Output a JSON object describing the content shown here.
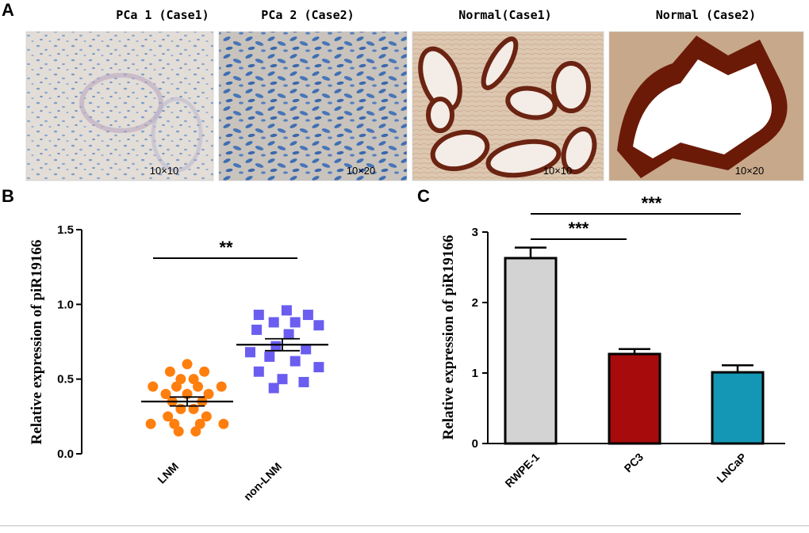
{
  "panel_a": {
    "letter": "A",
    "images": [
      {
        "title": "PCa 1 (Case1)",
        "magnification": "10×10",
        "kind": "pca-low"
      },
      {
        "title": "PCa 2 (Case2)",
        "magnification": "10×20",
        "kind": "pca-high"
      },
      {
        "title": "Normal(Case1)",
        "magnification": "10×10",
        "kind": "normal-low"
      },
      {
        "title": "Normal (Case2)",
        "magnification": "10×20",
        "kind": "normal-high"
      }
    ]
  },
  "chart_data": [
    {
      "type": "scatter",
      "panel": "B",
      "ylabel": "Relative expression of piR19166",
      "ylim": [
        0,
        1.5
      ],
      "yticks": [
        "0.0",
        "0.5",
        "1.0",
        "1.5"
      ],
      "categories": [
        "LNM",
        "non-LNM"
      ],
      "significance": "**",
      "series": [
        {
          "name": "LNM",
          "color": "#ff7f0e",
          "marker": "circle",
          "mean": 0.35,
          "sem": 0.03,
          "points": [
            {
              "dx": 0.0,
              "y": 0.6
            },
            {
              "dx": -0.4,
              "y": 0.55
            },
            {
              "dx": 0.4,
              "y": 0.55
            },
            {
              "dx": -0.15,
              "y": 0.5
            },
            {
              "dx": 0.15,
              "y": 0.5
            },
            {
              "dx": -0.8,
              "y": 0.45
            },
            {
              "dx": -0.25,
              "y": 0.45
            },
            {
              "dx": 0.25,
              "y": 0.45
            },
            {
              "dx": 0.8,
              "y": 0.45
            },
            {
              "dx": -0.5,
              "y": 0.4
            },
            {
              "dx": 0.0,
              "y": 0.4
            },
            {
              "dx": 0.5,
              "y": 0.4
            },
            {
              "dx": -0.35,
              "y": 0.35
            },
            {
              "dx": 0.35,
              "y": 0.35
            },
            {
              "dx": -0.15,
              "y": 0.3
            },
            {
              "dx": 0.15,
              "y": 0.3
            },
            {
              "dx": -0.45,
              "y": 0.25
            },
            {
              "dx": 0.45,
              "y": 0.25
            },
            {
              "dx": -0.85,
              "y": 0.2
            },
            {
              "dx": -0.3,
              "y": 0.2
            },
            {
              "dx": 0.3,
              "y": 0.2
            },
            {
              "dx": 0.85,
              "y": 0.2
            },
            {
              "dx": -0.2,
              "y": 0.15
            },
            {
              "dx": 0.2,
              "y": 0.15
            }
          ]
        },
        {
          "name": "non-LNM",
          "color": "#6a5df0",
          "marker": "square",
          "mean": 0.73,
          "sem": 0.04,
          "points": [
            {
              "dx": 0.1,
              "y": 0.96
            },
            {
              "dx": -0.55,
              "y": 0.93
            },
            {
              "dx": 0.6,
              "y": 0.93
            },
            {
              "dx": -0.2,
              "y": 0.88
            },
            {
              "dx": 0.3,
              "y": 0.88
            },
            {
              "dx": 0.85,
              "y": 0.86
            },
            {
              "dx": -0.6,
              "y": 0.83
            },
            {
              "dx": 0.15,
              "y": 0.8
            },
            {
              "dx": -0.15,
              "y": 0.72
            },
            {
              "dx": 0.55,
              "y": 0.7
            },
            {
              "dx": -0.75,
              "y": 0.68
            },
            {
              "dx": -0.3,
              "y": 0.65
            },
            {
              "dx": 0.3,
              "y": 0.62
            },
            {
              "dx": 0.85,
              "y": 0.58
            },
            {
              "dx": -0.55,
              "y": 0.55
            },
            {
              "dx": 0.0,
              "y": 0.5
            },
            {
              "dx": 0.5,
              "y": 0.48
            },
            {
              "dx": -0.2,
              "y": 0.44
            }
          ]
        }
      ]
    },
    {
      "type": "bar",
      "panel": "C",
      "ylabel": "Relative expression of piR19166",
      "ylim": [
        0,
        3
      ],
      "yticks": [
        "0",
        "1",
        "2",
        "3"
      ],
      "categories": [
        "RWPE-1",
        "PC3",
        "LNCaP"
      ],
      "values": [
        2.63,
        1.27,
        1.01
      ],
      "errors": [
        0.15,
        0.07,
        0.1
      ],
      "colors": [
        "#d3d3d3",
        "#a70b0b",
        "#1497b4"
      ],
      "significance": [
        {
          "from": "RWPE-1",
          "to": "PC3",
          "label": "***"
        },
        {
          "from": "RWPE-1",
          "to": "LNCaP",
          "label": "***"
        }
      ]
    }
  ]
}
